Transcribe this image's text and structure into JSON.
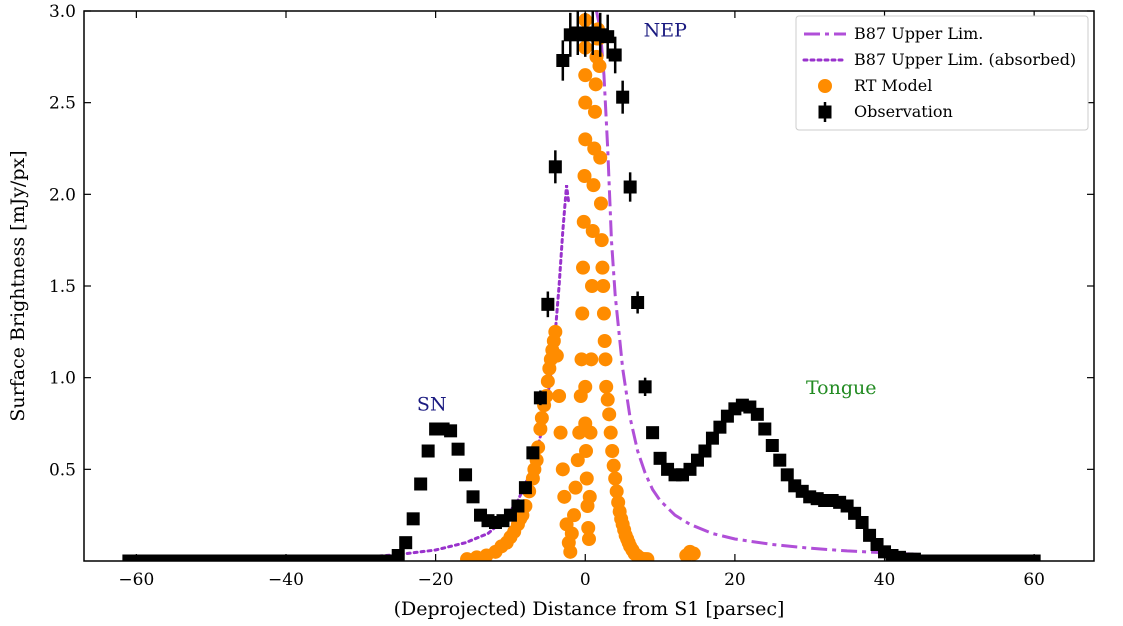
{
  "chart_data": {
    "type": "scatter",
    "xlabel": "(Deprojected) Distance from S1 [parsec]",
    "ylabel": "Surface Brightness [mJy/px]",
    "xlim": [
      -67,
      68
    ],
    "ylim": [
      0,
      3.0
    ],
    "x_ticks": [
      -60,
      -40,
      -20,
      0,
      20,
      40,
      60
    ],
    "x_tick_labels": [
      "−60",
      "−40",
      "−20",
      "0",
      "20",
      "40",
      "60"
    ],
    "y_ticks": [
      0.5,
      1.0,
      1.5,
      2.0,
      2.5,
      3.0
    ],
    "y_tick_labels": [
      "0.5",
      "1.0",
      "1.5",
      "2.0",
      "2.5",
      "3.0"
    ],
    "grid": false,
    "legend_position": "top-right",
    "colors": {
      "b87": "#b04fd8",
      "b87_absorbed": "#9932cc",
      "rt_model": "#ff8c00",
      "observation": "#000000",
      "nep_label": "#1a1a80",
      "sn_label": "#1a1a80",
      "tongue_label": "#228b22"
    },
    "legend": [
      {
        "label": "B87 Upper Lim.",
        "style": "dashdot",
        "color": "#b04fd8"
      },
      {
        "label": "B87 Upper Lim. (absorbed)",
        "style": "dotted",
        "color": "#9932cc"
      },
      {
        "label": "RT Model",
        "style": "circle",
        "color": "#ff8c00"
      },
      {
        "label": "Observation",
        "style": "square-errorbar",
        "color": "#000000"
      }
    ],
    "annotations": [
      {
        "text": "NEP",
        "x": 7.8,
        "y": 2.86,
        "color": "#1a1a80"
      },
      {
        "text": "SN",
        "x": -22.5,
        "y": 0.82,
        "color": "#1a1a80"
      },
      {
        "text": "Tongue",
        "x": 29.5,
        "y": 0.91,
        "color": "#228b22"
      }
    ],
    "series": [
      {
        "name": "B87 Upper Lim.",
        "style": "dashdot",
        "x": [
          1.5,
          2.0,
          2.5,
          3.0,
          3.5,
          4.0,
          5.0,
          6.0,
          7.0,
          8.0,
          9.0,
          10.0,
          12.0,
          14.0,
          17.0,
          20.0,
          25.0,
          30.0,
          35.0,
          40.0,
          45.0
        ],
        "y": [
          3.0,
          2.9,
          2.65,
          2.25,
          1.75,
          1.45,
          1.05,
          0.78,
          0.6,
          0.48,
          0.39,
          0.33,
          0.25,
          0.2,
          0.15,
          0.12,
          0.09,
          0.07,
          0.055,
          0.045,
          0.035
        ]
      },
      {
        "name": "B87 Upper Lim. (absorbed)",
        "style": "dotted",
        "x": [
          -35.0,
          -30.0,
          -25.0,
          -20.0,
          -16.0,
          -13.0,
          -11.0,
          -9.0,
          -8.0,
          -7.0,
          -6.0,
          -5.0,
          -4.5,
          -4.0,
          -3.5,
          -3.0,
          -2.5,
          -2.2
        ],
        "y": [
          0.01,
          0.02,
          0.035,
          0.06,
          0.1,
          0.15,
          0.22,
          0.33,
          0.42,
          0.52,
          0.68,
          0.9,
          1.05,
          1.25,
          1.5,
          1.8,
          2.05,
          1.95
        ]
      },
      {
        "name": "RT Model",
        "style": "circle",
        "x": [
          -15.8,
          -14.5,
          -13.2,
          -12.0,
          -11.2,
          -10.5,
          -10.0,
          -9.5,
          -9.0,
          -8.7,
          -8.4,
          -8.0,
          -7.5,
          -7.0,
          -6.8,
          -6.5,
          -6.3,
          -6.0,
          -5.8,
          -5.5,
          -5.2,
          -5.0,
          -4.8,
          -4.6,
          -4.4,
          -4.2,
          -4.0,
          -3.8,
          -3.5,
          -3.3,
          -3.0,
          -2.8,
          -2.5,
          -2.2,
          -2.0,
          -1.8,
          -1.5,
          -1.3,
          -1.0,
          -0.8,
          -0.6,
          -0.5,
          -0.4,
          -0.3,
          -0.2,
          -0.1,
          0.0,
          0.0,
          0.0,
          0.0,
          0.0,
          0.0,
          0.0,
          0.1,
          0.2,
          0.3,
          0.4,
          0.5,
          0.6,
          0.7,
          0.8,
          0.9,
          1.0,
          1.1,
          1.2,
          1.3,
          1.4,
          1.5,
          1.6,
          1.7,
          1.8,
          1.9,
          2.0,
          2.1,
          2.2,
          2.3,
          2.4,
          2.5,
          2.6,
          2.7,
          2.8,
          3.0,
          3.2,
          3.4,
          3.6,
          3.8,
          4.0,
          4.2,
          4.4,
          4.6,
          4.8,
          5.0,
          5.2,
          5.4,
          5.6,
          5.8,
          6.0,
          6.3,
          6.6,
          6.9,
          7.2,
          7.5,
          7.8,
          8.0,
          8.3,
          13.5,
          14.0,
          14.5
        ],
        "y": [
          0.01,
          0.02,
          0.03,
          0.05,
          0.08,
          0.1,
          0.13,
          0.16,
          0.2,
          0.23,
          0.25,
          0.3,
          0.38,
          0.45,
          0.5,
          0.55,
          0.62,
          0.72,
          0.78,
          0.85,
          0.9,
          0.98,
          1.05,
          1.1,
          1.15,
          1.2,
          1.25,
          1.12,
          0.9,
          0.7,
          0.5,
          0.35,
          0.2,
          0.1,
          0.05,
          0.15,
          0.25,
          0.4,
          0.55,
          0.7,
          0.9,
          1.1,
          1.35,
          1.6,
          1.85,
          2.1,
          2.3,
          2.5,
          2.65,
          2.8,
          2.95,
          0.95,
          0.75,
          0.6,
          0.45,
          0.3,
          0.18,
          0.12,
          0.35,
          0.7,
          1.1,
          1.5,
          1.8,
          2.05,
          2.25,
          2.45,
          2.6,
          2.75,
          2.85,
          2.9,
          2.85,
          2.7,
          2.2,
          1.95,
          1.75,
          1.6,
          1.5,
          1.35,
          1.2,
          1.1,
          0.95,
          0.88,
          0.8,
          0.7,
          0.6,
          0.52,
          0.45,
          0.38,
          0.32,
          0.27,
          0.23,
          0.2,
          0.17,
          0.14,
          0.12,
          0.1,
          0.08,
          0.06,
          0.04,
          0.03,
          0.02,
          0.01,
          0.01,
          0.01,
          0.01,
          0.03,
          0.05,
          0.04
        ]
      },
      {
        "name": "Observation",
        "style": "square-errorbar",
        "x": [
          -61,
          -60,
          -59,
          -58,
          -57,
          -56,
          -55,
          -54,
          -53,
          -52,
          -51,
          -50,
          -49,
          -48,
          -47,
          -46,
          -45,
          -44,
          -43,
          -42,
          -41,
          -40,
          -39,
          -38,
          -37,
          -36,
          -35,
          -34,
          -33,
          -32,
          -31,
          -30,
          -29,
          -28,
          -27,
          -26,
          -25,
          -24,
          -23,
          -22,
          -21,
          -20,
          -19,
          -18,
          -17,
          -16,
          -15,
          -14,
          -13,
          -12,
          -11,
          -10,
          -9,
          -8,
          -7,
          -6,
          -5,
          -4,
          -3,
          -2,
          -1,
          0,
          1,
          2,
          3,
          4,
          5,
          6,
          7,
          8,
          9,
          10,
          11,
          12,
          13,
          14,
          15,
          16,
          17,
          18,
          19,
          20,
          21,
          22,
          23,
          24,
          25,
          26,
          27,
          28,
          29,
          30,
          31,
          32,
          33,
          34,
          35,
          36,
          37,
          38,
          39,
          40,
          41,
          42,
          43,
          44,
          45,
          46,
          47,
          48,
          49,
          50,
          51,
          52,
          53,
          54,
          55,
          56,
          57,
          58,
          59,
          60
        ],
        "y": [
          0.0,
          0.0,
          0.0,
          0.0,
          0.0,
          0.0,
          0.0,
          0.0,
          0.0,
          0.0,
          0.0,
          0.0,
          0.0,
          0.0,
          0.0,
          0.0,
          0.0,
          0.0,
          0.0,
          0.0,
          0.0,
          0.0,
          0.0,
          0.0,
          0.0,
          0.0,
          0.0,
          0.0,
          0.0,
          0.0,
          0.0,
          0.0,
          0.0,
          0.0,
          0.0,
          0.0,
          0.03,
          0.1,
          0.23,
          0.42,
          0.6,
          0.72,
          0.72,
          0.71,
          0.61,
          0.47,
          0.35,
          0.25,
          0.22,
          0.21,
          0.22,
          0.25,
          0.3,
          0.4,
          0.59,
          0.89,
          1.4,
          2.15,
          2.73,
          2.87,
          2.88,
          2.87,
          2.88,
          2.87,
          2.86,
          2.76,
          2.53,
          2.04,
          1.41,
          0.95,
          0.7,
          0.56,
          0.5,
          0.47,
          0.47,
          0.5,
          0.55,
          0.6,
          0.67,
          0.73,
          0.79,
          0.83,
          0.85,
          0.84,
          0.8,
          0.72,
          0.63,
          0.55,
          0.47,
          0.41,
          0.38,
          0.35,
          0.34,
          0.33,
          0.33,
          0.32,
          0.3,
          0.26,
          0.21,
          0.14,
          0.09,
          0.05,
          0.03,
          0.02,
          0.01,
          0.01,
          0.0,
          0.0,
          0.0,
          0.0,
          0.0,
          0.0,
          0.0,
          0.0,
          0.0,
          0.0,
          0.0,
          0.0,
          0.0,
          0.0,
          0.0,
          0.0
        ],
        "yerr": [
          0.0,
          0.0,
          0.0,
          0.0,
          0.0,
          0.0,
          0.0,
          0.0,
          0.0,
          0.0,
          0.0,
          0.0,
          0.0,
          0.0,
          0.0,
          0.0,
          0.0,
          0.0,
          0.0,
          0.0,
          0.0,
          0.0,
          0.0,
          0.0,
          0.0,
          0.0,
          0.0,
          0.0,
          0.0,
          0.0,
          0.0,
          0.0,
          0.0,
          0.0,
          0.0,
          0.0,
          0.0,
          0.0,
          0.0,
          0.0,
          0.0,
          0.0,
          0.0,
          0.0,
          0.0,
          0.0,
          0.0,
          0.0,
          0.0,
          0.0,
          0.0,
          0.0,
          0.0,
          0.0,
          0.0,
          0.04,
          0.07,
          0.09,
          0.11,
          0.12,
          0.12,
          0.12,
          0.12,
          0.12,
          0.12,
          0.1,
          0.09,
          0.08,
          0.06,
          0.05,
          0.0,
          0.0,
          0.0,
          0.0,
          0.0,
          0.0,
          0.0,
          0.0,
          0.0,
          0.0,
          0.0,
          0.0,
          0.0,
          0.0,
          0.0,
          0.0,
          0.0,
          0.0,
          0.0,
          0.0,
          0.0,
          0.0,
          0.0,
          0.0,
          0.0,
          0.0,
          0.0,
          0.0,
          0.0,
          0.0,
          0.0,
          0.0,
          0.0,
          0.0,
          0.0,
          0.0,
          0.0,
          0.0,
          0.0,
          0.0,
          0.0,
          0.0,
          0.0,
          0.0,
          0.0,
          0.0,
          0.0,
          0.0,
          0.0,
          0.0,
          0.0,
          0.0
        ]
      }
    ]
  }
}
